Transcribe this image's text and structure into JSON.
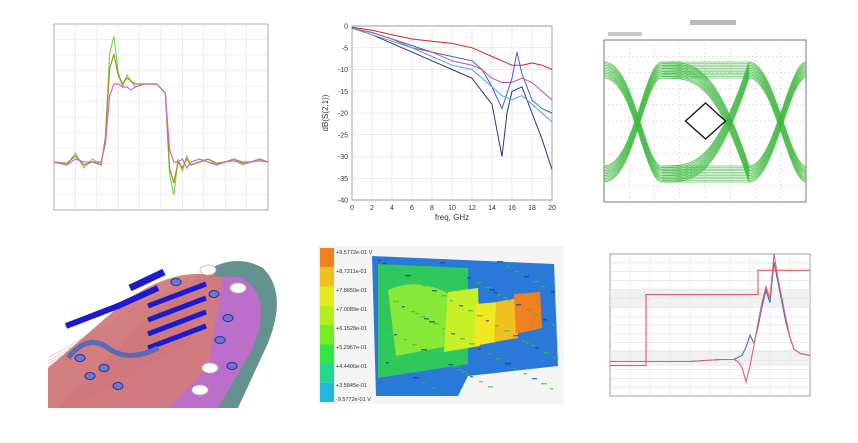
{
  "chart_data": [
    {
      "type": "line",
      "title": "",
      "xlabel": "",
      "ylabel": "",
      "series": [
        {
          "color": "#7ed35a",
          "x": [
            0,
            6,
            10,
            14,
            18,
            22,
            24,
            26,
            28,
            30,
            32,
            34,
            36,
            38,
            42,
            48,
            52,
            54,
            56,
            58,
            60,
            62,
            64,
            68,
            72,
            76,
            80,
            84,
            88,
            92,
            96,
            100
          ],
          "y": [
            -0.2,
            -0.25,
            -0.05,
            -0.3,
            -0.15,
            -0.25,
            0.2,
            1.6,
            1.9,
            1.3,
            1.05,
            1.25,
            1.15,
            1.05,
            1.1,
            1.1,
            0.95,
            -0.4,
            -0.75,
            -0.15,
            -0.35,
            -0.1,
            -0.25,
            -0.2,
            -0.15,
            -0.25,
            -0.2,
            -0.15,
            -0.25,
            -0.2,
            -0.15,
            -0.2
          ]
        },
        {
          "color": "#a0902a",
          "x": [
            0,
            6,
            10,
            14,
            18,
            22,
            24,
            26,
            28,
            30,
            32,
            34,
            36,
            38,
            42,
            48,
            52,
            54,
            56,
            58,
            60,
            62,
            64,
            68,
            72,
            76,
            80,
            84,
            88,
            92,
            96,
            100
          ],
          "y": [
            -0.2,
            -0.22,
            -0.1,
            -0.25,
            -0.2,
            -0.25,
            0.2,
            1.35,
            1.6,
            1.25,
            1.1,
            1.2,
            1.15,
            1.1,
            1.1,
            1.1,
            0.95,
            -0.3,
            -0.55,
            -0.2,
            -0.3,
            -0.15,
            -0.25,
            -0.2,
            -0.15,
            -0.22,
            -0.2,
            -0.18,
            -0.22,
            -0.2,
            -0.18,
            -0.2
          ]
        },
        {
          "color": "#d865c8",
          "x": [
            0,
            6,
            10,
            14,
            18,
            22,
            24,
            26,
            28,
            30,
            32,
            34,
            36,
            38,
            42,
            48,
            52,
            54,
            56,
            58,
            60,
            62,
            64,
            68,
            72,
            76,
            80,
            84,
            88,
            92,
            96,
            100
          ],
          "y": [
            -0.2,
            -0.25,
            -0.15,
            -0.2,
            -0.2,
            -0.2,
            0.1,
            0.9,
            1.1,
            1.1,
            1.05,
            1.05,
            1.0,
            1.05,
            1.1,
            1.1,
            0.95,
            0.0,
            -0.2,
            -0.2,
            -0.15,
            -0.3,
            -0.2,
            -0.15,
            -0.2,
            -0.25,
            -0.2,
            -0.15,
            -0.2,
            -0.2,
            -0.15,
            -0.2
          ]
        }
      ],
      "xlim": [
        0,
        100
      ],
      "ylim": [
        -1,
        2.1
      ],
      "grid": true
    },
    {
      "type": "line",
      "title": "",
      "xlabel": "freq, GHz",
      "ylabel": "dB(S(2,1))",
      "x_ticks": [
        "0",
        "2",
        "4",
        "6",
        "8",
        "10",
        "12",
        "14",
        "16",
        "18",
        "20"
      ],
      "y_ticks": [
        "0",
        "-5",
        "-10",
        "-15",
        "-20",
        "-25",
        "-30",
        "-35",
        "-40"
      ],
      "xlim": [
        0,
        20
      ],
      "ylim": [
        -40,
        0
      ],
      "grid": true,
      "series": [
        {
          "color": "#d62020",
          "x": [
            0,
            2,
            4,
            6,
            8,
            10,
            12,
            13,
            14,
            15,
            16,
            17,
            18,
            19,
            20
          ],
          "y": [
            -0.3,
            -1,
            -2,
            -3,
            -3.5,
            -4,
            -5,
            -6,
            -7,
            -8,
            -9,
            -9,
            -8.5,
            -9,
            -10
          ]
        },
        {
          "color": "#4060c8",
          "x": [
            0,
            2,
            4,
            6,
            8,
            10,
            12,
            13,
            14,
            15,
            16,
            16.5,
            17,
            18,
            19,
            20
          ],
          "y": [
            -0.5,
            -1.5,
            -3,
            -4.5,
            -6,
            -7,
            -8,
            -10,
            -14,
            -19,
            -12,
            -6,
            -11,
            -17,
            -19,
            -20
          ]
        },
        {
          "color": "#2f2f8c",
          "x": [
            0,
            2,
            4,
            6,
            8,
            10,
            12,
            13,
            14,
            14.5,
            15,
            15.5,
            16,
            17,
            18,
            19,
            20
          ],
          "y": [
            -0.5,
            -2,
            -4,
            -6,
            -8,
            -10,
            -12,
            -15,
            -18,
            -24,
            -30,
            -20,
            -15,
            -14,
            -20,
            -26,
            -33
          ]
        },
        {
          "color": "#c050a0",
          "x": [
            0,
            2,
            4,
            6,
            8,
            10,
            12,
            13,
            14,
            15,
            16,
            17,
            18,
            19,
            20
          ],
          "y": [
            -0.5,
            -1.5,
            -3,
            -5,
            -6,
            -8,
            -9,
            -10,
            -12,
            -13,
            -13,
            -12,
            -13,
            -15,
            -17
          ]
        },
        {
          "color": "#40b0c8",
          "x": [
            0,
            2,
            4,
            6,
            8,
            10,
            12,
            13,
            14,
            15,
            16,
            17,
            18,
            19,
            20
          ],
          "y": [
            -0.5,
            -2,
            -3.5,
            -5,
            -7,
            -9,
            -10,
            -12,
            -14,
            -16,
            -17,
            -16,
            -18,
            -20,
            -22
          ]
        }
      ]
    },
    {
      "type": "eye",
      "title": "",
      "xlabel": "",
      "ylabel": "",
      "trace_color": "#3db83d",
      "mask_color": "#111111",
      "background": "#ffffff"
    },
    {
      "type": "line",
      "title": "",
      "xlabel": "",
      "ylabel": "",
      "xlim": [
        0,
        100
      ],
      "ylim": [
        -2,
        5
      ],
      "grid": true,
      "series": [
        {
          "name": "",
          "color": "#e04848",
          "kind": "step",
          "x": [
            0,
            18,
            18,
            74,
            74,
            100
          ],
          "y": [
            -0.5,
            -0.5,
            3.0,
            3.0,
            4.2,
            4.2
          ]
        },
        {
          "color": "#4070c0",
          "x": [
            0,
            20,
            40,
            55,
            62,
            66,
            68,
            70,
            72,
            74,
            76,
            78,
            80,
            82,
            84,
            86,
            88,
            90,
            92,
            95,
            100
          ],
          "y": [
            -0.3,
            -0.3,
            -0.3,
            -0.2,
            -0.2,
            0.0,
            0.4,
            1.0,
            0.6,
            1.4,
            2.4,
            3.2,
            2.6,
            4.6,
            3.6,
            2.6,
            1.6,
            0.9,
            0.3,
            0.1,
            0.0
          ]
        },
        {
          "color": "#e06070",
          "x": [
            0,
            20,
            40,
            55,
            62,
            64,
            66,
            68,
            70,
            72,
            74,
            76,
            78,
            80,
            82,
            84,
            86,
            88,
            90,
            92,
            95,
            100
          ],
          "y": [
            -0.3,
            -0.3,
            -0.3,
            -0.2,
            -0.2,
            -0.3,
            -0.6,
            -1.3,
            -0.5,
            0.5,
            1.6,
            2.6,
            3.4,
            2.8,
            5.0,
            3.8,
            2.8,
            1.8,
            0.9,
            0.3,
            0.1,
            0.0
          ]
        }
      ]
    }
  ],
  "figures": {
    "pcb_3d": {
      "kind": "3d-render",
      "colors": [
        "#5c8c88",
        "#d27a7a",
        "#c46ad0",
        "#1a1ad0",
        "#5a6ab4"
      ]
    },
    "heatmap": {
      "legend_top": "+9.5772e-01 V",
      "legend_bottom": "-9.5772e-01 V",
      "legend_values": [
        "+9.5772e-01 V",
        "+8.7211e-01",
        "+7.8650e-01",
        "+7.0089e-01",
        "+6.1528e-01",
        "+5.2967e-01",
        "+4.4406e-01",
        "+3.5845e-01"
      ],
      "scale_colors": [
        "#f08020",
        "#f0c020",
        "#e8e820",
        "#b0f020",
        "#70f020",
        "#30e840",
        "#20d890",
        "#20b8e0"
      ]
    }
  }
}
